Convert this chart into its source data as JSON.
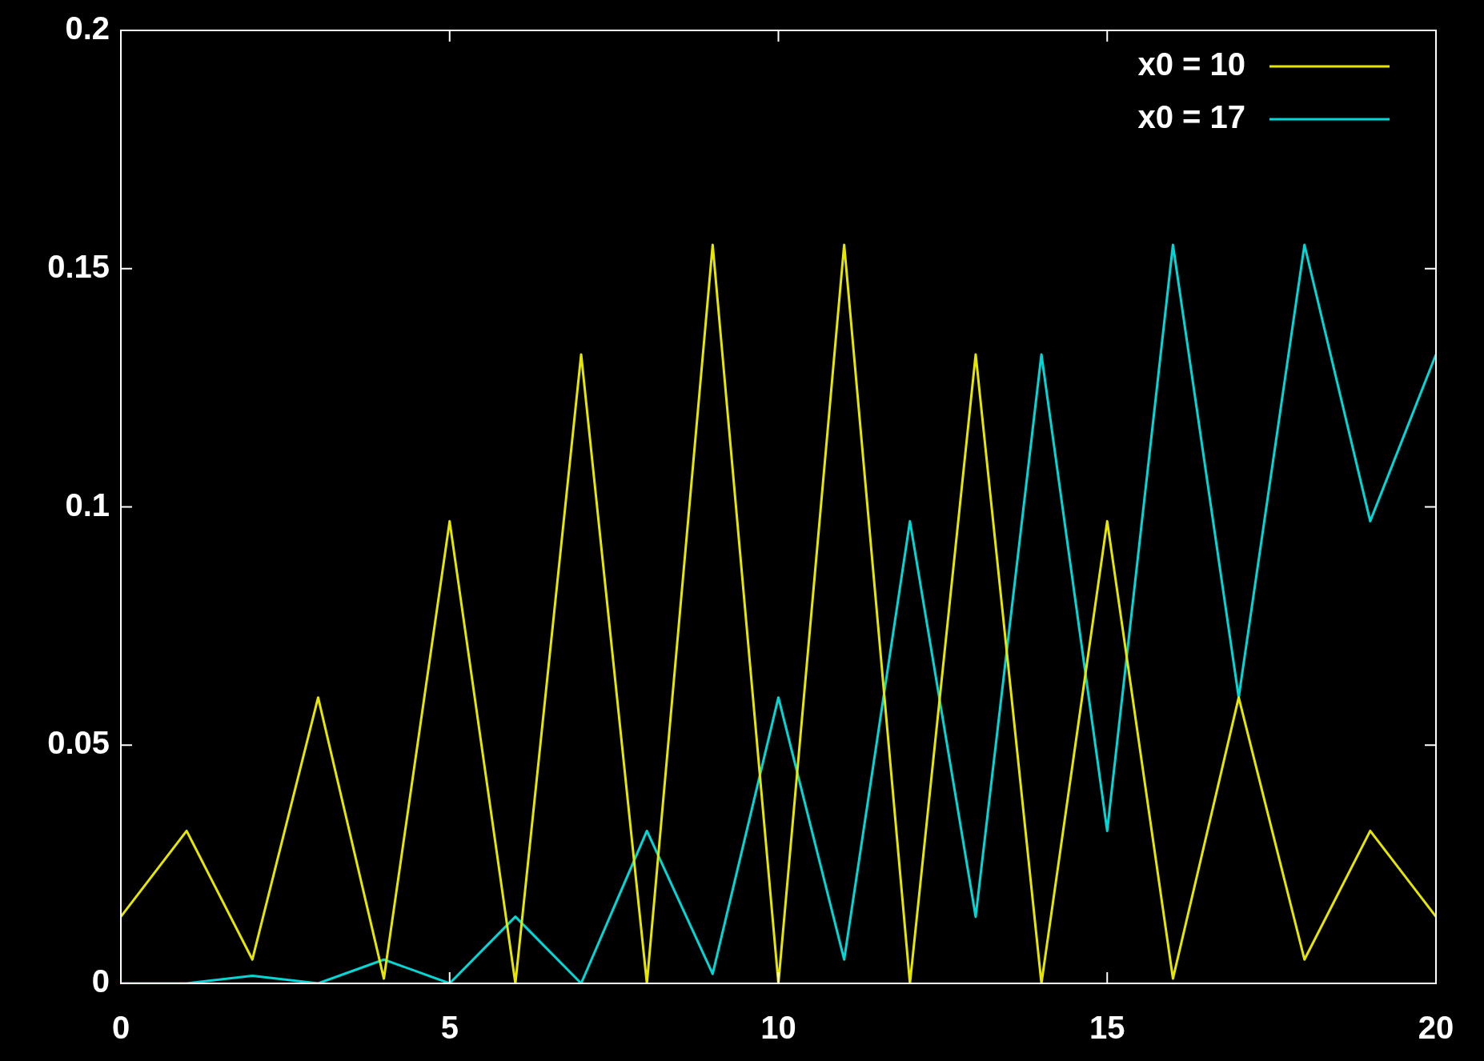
{
  "chart_data": {
    "type": "line",
    "x": [
      0,
      1,
      2,
      3,
      4,
      5,
      6,
      7,
      8,
      9,
      10,
      11,
      12,
      13,
      14,
      15,
      16,
      17,
      18,
      19,
      20
    ],
    "series": [
      {
        "name": "x0 = 10",
        "color": "#e6e600",
        "values": [
          0.014,
          0.032,
          0.005,
          0.06,
          0.001,
          0.097,
          0,
          0.132,
          0,
          0.155,
          0,
          0.155,
          0,
          0.132,
          0,
          0.097,
          0.001,
          0.06,
          0.005,
          0.032,
          0.014
        ]
      },
      {
        "name": "x0 = 17",
        "color": "#00d8d8",
        "values": [
          0,
          0,
          0.0016,
          0,
          0.005,
          0,
          0.014,
          0,
          0.032,
          0.002,
          0.06,
          0.005,
          0.097,
          0.014,
          0.132,
          0.032,
          0.155,
          0.06,
          0.155,
          0.097,
          0.132
        ]
      }
    ],
    "xlim": [
      0,
      20
    ],
    "xticks": [
      0,
      5,
      10,
      15,
      20
    ],
    "ylim": [
      0,
      0.2
    ],
    "yticks": [
      0,
      0.05,
      0.1,
      0.15,
      0.2
    ],
    "grid": false,
    "legend": "top right",
    "marker": "none",
    "line_style": "solid"
  }
}
